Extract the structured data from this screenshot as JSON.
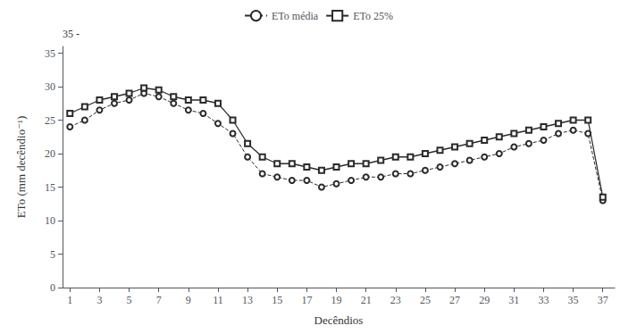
{
  "chart_data": {
    "type": "line",
    "xlabel": "Decêndios",
    "ylabel": "ETo (mm decêndio⁻¹)",
    "annotations": [
      "35 -"
    ],
    "x": [
      1,
      2,
      3,
      4,
      5,
      6,
      7,
      8,
      9,
      10,
      11,
      12,
      13,
      14,
      15,
      16,
      17,
      18,
      19,
      20,
      21,
      22,
      23,
      24,
      25,
      26,
      27,
      28,
      29,
      30,
      31,
      32,
      33,
      34,
      35,
      36,
      37
    ],
    "series": [
      {
        "name": "ETo média",
        "color": "#2b2b2b",
        "line_style": "dashed",
        "marker": "circle",
        "values": [
          24.0,
          25.0,
          26.5,
          27.5,
          28.0,
          29.0,
          28.5,
          27.5,
          26.5,
          26.0,
          24.5,
          23.0,
          19.5,
          17.0,
          16.5,
          16.0,
          16.0,
          15.0,
          15.5,
          16.0,
          16.5,
          16.5,
          17.0,
          17.0,
          17.5,
          18.0,
          18.5,
          19.0,
          19.5,
          20.0,
          21.0,
          21.5,
          22.0,
          23.0,
          23.5,
          23.0,
          13.0
        ]
      },
      {
        "name": "ETo 25%",
        "color": "#2b2b2b",
        "line_style": "solid",
        "marker": "square",
        "values": [
          26.0,
          27.0,
          28.0,
          28.5,
          29.0,
          29.8,
          29.5,
          28.5,
          28.0,
          28.0,
          27.5,
          25.0,
          21.5,
          19.5,
          18.5,
          18.5,
          18.0,
          17.5,
          18.0,
          18.5,
          18.5,
          19.0,
          19.5,
          19.5,
          20.0,
          20.5,
          21.0,
          21.5,
          22.0,
          22.5,
          23.0,
          23.5,
          24.0,
          24.5,
          25.0,
          25.0,
          13.5
        ]
      }
    ],
    "xlim": [
      0.5,
      37.8
    ],
    "xticks": [
      1,
      3,
      5,
      7,
      9,
      11,
      13,
      15,
      17,
      19,
      21,
      23,
      25,
      27,
      29,
      31,
      33,
      35,
      37
    ],
    "ylim": [
      0,
      36
    ],
    "yticks": [
      0,
      5,
      10,
      15,
      20,
      25,
      30,
      35
    ],
    "grid": false,
    "legend": "top"
  }
}
